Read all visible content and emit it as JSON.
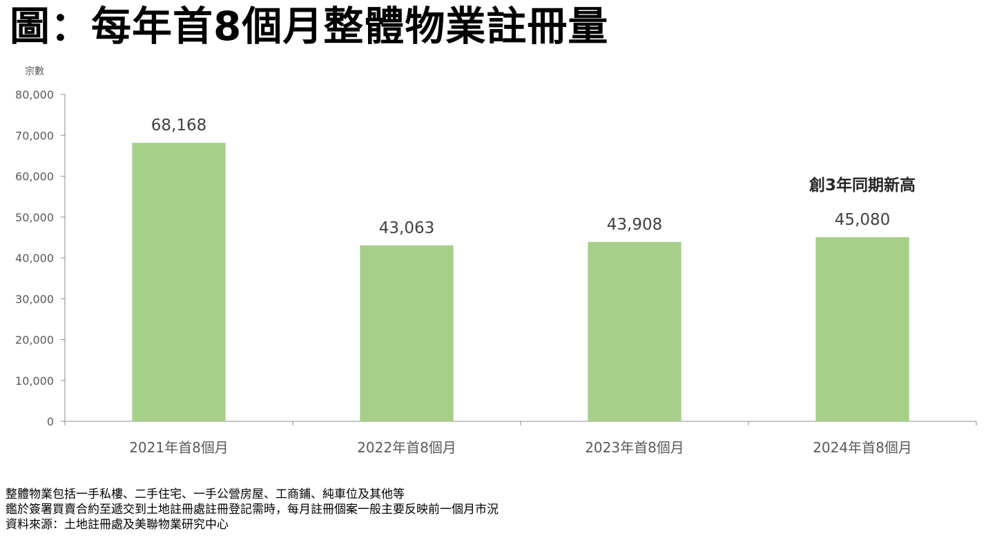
{
  "title": "圖：每年首8個月整體物業註冊量",
  "chart_data": {
    "type": "bar",
    "ylabel": "宗數",
    "categories": [
      "2021年首8個月",
      "2022年首8個月",
      "2023年首8個月",
      "2024年首8個月"
    ],
    "values": [
      68168,
      43063,
      43908,
      45080
    ],
    "value_labels": [
      "68,168",
      "43,063",
      "43,908",
      "45,080"
    ],
    "ylim": [
      0,
      80000
    ],
    "yticks": [
      0,
      10000,
      20000,
      30000,
      40000,
      50000,
      60000,
      70000,
      80000
    ],
    "ytick_labels": [
      "0",
      "10,000",
      "20,000",
      "30,000",
      "40,000",
      "50,000",
      "60,000",
      "70,000",
      "80,000"
    ],
    "annotation": "創3年同期新高",
    "bar_color": "#a6d08a",
    "grid": false
  },
  "notes": [
    "整體物業包括一手私樓、二手住宅、一手公營房屋、工商鋪、純車位及其他等",
    "鑑於簽署買賣合約至遞交到土地註冊處註冊登記需時，每月註冊個案一般主要反映前一個月市況",
    "資料來源：土地註冊處及美聯物業研究中心"
  ]
}
